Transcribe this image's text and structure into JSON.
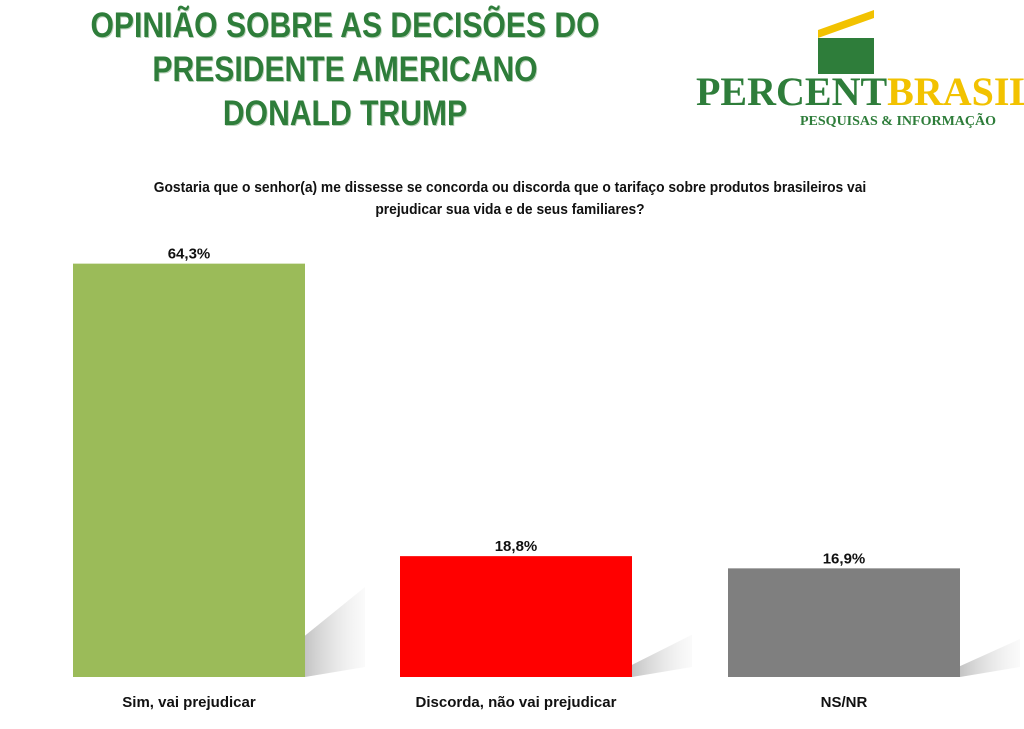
{
  "header": {
    "title_lines": [
      "OPINIÃO SOBRE AS DECISÕES DO",
      "PRESIDENTE AMERICANO",
      "DONALD TRUMP"
    ]
  },
  "logo": {
    "word_part1": "PERCENT",
    "word_part2": "BRASIL",
    "subtitle": "PESQUISAS & INFORMAÇÃO",
    "colors": {
      "green": "#2e7d3a",
      "yellow": "#f2c200"
    }
  },
  "chart_data": {
    "type": "bar",
    "title": "Gostaria que o senhor(a) me dissesse se concorda ou discorda que o tarifaço sobre produtos brasileiros vai prejudicar sua vida e de seus familiares?",
    "categories": [
      "Sim, vai prejudicar",
      "Discorda, não vai prejudicar",
      "NS/NR"
    ],
    "values": [
      64.3,
      18.8,
      16.9
    ],
    "value_labels": [
      "64,3%",
      "18,8%",
      "16,9%"
    ],
    "colors": [
      "#9bbb59",
      "#ff0000",
      "#7f7f7f"
    ],
    "ylim": [
      0,
      70
    ],
    "grid": false,
    "legend": "none"
  }
}
